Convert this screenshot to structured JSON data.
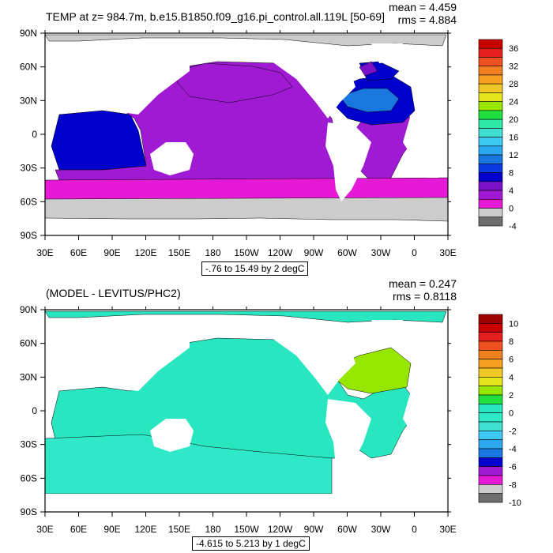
{
  "chart_data": [
    {
      "type": "heatmap",
      "title": "TEMP at z= 984.7m, b.e15.B1850.f09_g16.pi_control.all.119L [50-69]",
      "stats": {
        "mean": "mean = 4.459",
        "rms": "rms = 4.884"
      },
      "range_label": "-.76 to 15.49 by 2 degC",
      "x_ticks": [
        "30E",
        "60E",
        "90E",
        "120E",
        "150E",
        "180",
        "150W",
        "120W",
        "90W",
        "60W",
        "30W",
        "0",
        "30E"
      ],
      "y_ticks": [
        "90N",
        "60N",
        "30N",
        "0",
        "30S",
        "60S",
        "90S"
      ],
      "xlim": [
        30,
        390
      ],
      "ylim": [
        -90,
        90
      ],
      "colorbar": {
        "labels": [
          "36",
          "32",
          "28",
          "24",
          "20",
          "16",
          "12",
          "8",
          "4",
          "0",
          "-4"
        ],
        "levels": [
          -4,
          -2,
          0,
          2,
          4,
          6,
          8,
          10,
          12,
          14,
          16,
          18,
          20,
          22,
          24,
          26,
          28,
          30,
          32,
          34,
          36
        ],
        "colors": [
          "#6e6e6e",
          "#cccccc",
          "#e619d6",
          "#a01ad3",
          "#7a10c8",
          "#0000cd",
          "#0a3ae0",
          "#1878e0",
          "#2ba8f0",
          "#3cc8f0",
          "#40e0d0",
          "#2ee8a8",
          "#20e040",
          "#96e600",
          "#e6e61e",
          "#f0c828",
          "#f5a020",
          "#f08020",
          "#f05020",
          "#e61e1e",
          "#c80000"
        ]
      },
      "field": {
        "deep_ocean_level": 3.0,
        "southern_band_level": 1.5,
        "antarctic_level": -0.5,
        "north_pacific_level": 2.3,
        "north_atlantic_levels": [
          7,
          10,
          6,
          4
        ],
        "indian_ocean_level": 7.0
      }
    },
    {
      "type": "heatmap",
      "title": "(MODEL - LEVITUS/PHC2)",
      "stats": {
        "mean": "mean = 0.247",
        "rms": "rms = 0.8118"
      },
      "range_label": "-4.615 to 5.213 by 1 degC",
      "x_ticks": [
        "30E",
        "60E",
        "90E",
        "120E",
        "150E",
        "180",
        "150W",
        "120W",
        "90W",
        "60W",
        "30W",
        "0",
        "30E"
      ],
      "y_ticks": [
        "90N",
        "60N",
        "30N",
        "0",
        "30S",
        "60S",
        "90S"
      ],
      "xlim": [
        30,
        390
      ],
      "ylim": [
        -90,
        90
      ],
      "colorbar": {
        "labels": [
          "10",
          "8",
          "6",
          "4",
          "2",
          "0",
          "-2",
          "-4",
          "-6",
          "-8",
          "-10"
        ],
        "levels": [
          -10,
          -9,
          -8,
          -7,
          -6,
          -5,
          -4,
          -3,
          -2,
          -1,
          0,
          1,
          2,
          3,
          4,
          5,
          6,
          7,
          8,
          9,
          10
        ],
        "colors": [
          "#6e6e6e",
          "#cccccc",
          "#e619d6",
          "#a01ad3",
          "#0000cd",
          "#1878e0",
          "#2ba8f0",
          "#3cc8f0",
          "#40e0d0",
          "#2ee8c8",
          "#28e6c0",
          "#20e040",
          "#96e600",
          "#e6e61e",
          "#f0c828",
          "#f5a020",
          "#f08020",
          "#f05020",
          "#e61e1e",
          "#c80000",
          "#a00000"
        ]
      },
      "field": {
        "deep_ocean_level": 0.5,
        "southern_band_level": -0.3,
        "north_atlantic_level": 2.5
      }
    }
  ]
}
